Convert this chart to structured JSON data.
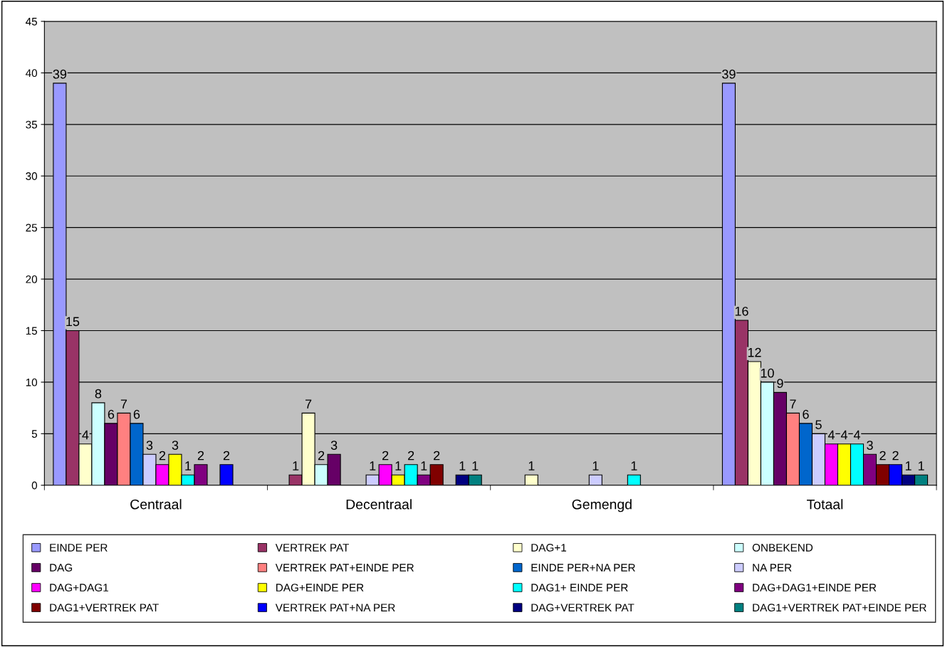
{
  "chart_data": {
    "type": "bar",
    "categories": [
      "Centraal",
      "Decentraal",
      "Gemengd",
      "Totaal"
    ],
    "series": [
      {
        "name": "EINDE PER",
        "color": "#9999ff",
        "values": [
          39,
          null,
          null,
          39
        ]
      },
      {
        "name": "VERTREK PAT",
        "color": "#993366",
        "values": [
          15,
          1,
          null,
          16
        ]
      },
      {
        "name": "DAG+1",
        "color": "#ffffcc",
        "values": [
          4,
          7,
          1,
          12
        ]
      },
      {
        "name": "ONBEKEND",
        "color": "#ccffff",
        "values": [
          8,
          2,
          null,
          10
        ]
      },
      {
        "name": "DAG",
        "color": "#660066",
        "values": [
          6,
          3,
          null,
          9
        ]
      },
      {
        "name": "VERTREK PAT+EINDE PER",
        "color": "#ff8080",
        "values": [
          7,
          null,
          null,
          7
        ]
      },
      {
        "name": "EINDE PER+NA PER",
        "color": "#0066cc",
        "values": [
          6,
          null,
          null,
          6
        ]
      },
      {
        "name": "NA PER",
        "color": "#ccccff",
        "values": [
          3,
          1,
          1,
          5
        ]
      },
      {
        "name": "DAG+DAG1",
        "color": "#ff00ff",
        "values": [
          2,
          2,
          null,
          4
        ]
      },
      {
        "name": "DAG+EINDE PER",
        "color": "#ffff00",
        "values": [
          3,
          1,
          null,
          4
        ]
      },
      {
        "name": "DAG1+ EINDE PER",
        "color": "#00ffff",
        "values": [
          1,
          2,
          1,
          4
        ]
      },
      {
        "name": "DAG+DAG1+EINDE PER",
        "color": "#800080",
        "values": [
          2,
          1,
          null,
          3
        ]
      },
      {
        "name": "DAG1+VERTREK PAT",
        "color": "#800000",
        "values": [
          null,
          2,
          null,
          2
        ]
      },
      {
        "name": "VERTREK PAT+NA PER",
        "color": "#0000ff",
        "values": [
          2,
          null,
          null,
          2
        ]
      },
      {
        "name": "DAG+VERTREK PAT",
        "color": "#000080",
        "values": [
          null,
          1,
          null,
          1
        ]
      },
      {
        "name": "DAG1+VERTREK PAT+EINDE PER",
        "color": "#008080",
        "values": [
          null,
          1,
          null,
          1
        ]
      }
    ],
    "ylim": [
      0,
      45
    ],
    "yticks": [
      0,
      5,
      10,
      15,
      20,
      25,
      30,
      35,
      40,
      45
    ],
    "grid": "y",
    "legend": "bottom",
    "data_labels": true
  }
}
